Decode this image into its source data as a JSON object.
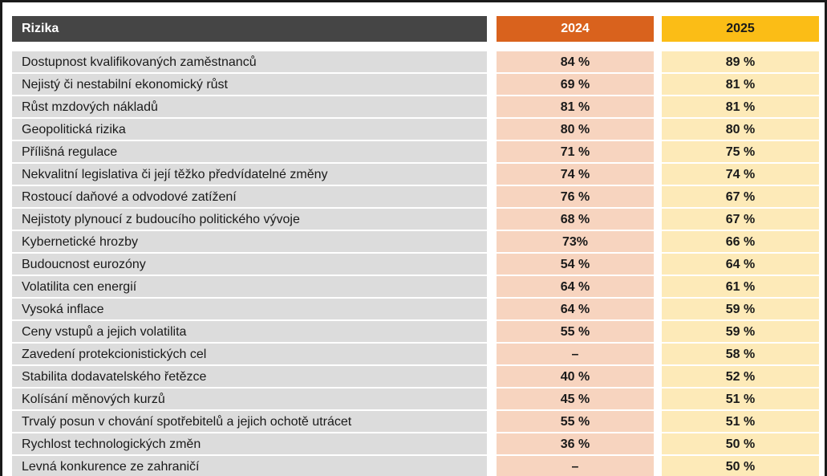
{
  "chart_data": {
    "type": "table",
    "columns": [
      "Rizika",
      "2024",
      "2025"
    ],
    "colors": {
      "header_label": "#454545",
      "header_2024": "#d9621d",
      "header_2025": "#fbbd16"
    },
    "rows": [
      {
        "label": "Dostupnost kvalifikovaných zaměstnanců",
        "y2024": "84 %",
        "y2025": "89 %"
      },
      {
        "label": "Nejistý či nestabilní ekonomický růst",
        "y2024": "69 %",
        "y2025": "81 %"
      },
      {
        "label": "Růst mzdových nákladů",
        "y2024": "81 %",
        "y2025": "81 %"
      },
      {
        "label": "Geopolitická rizika",
        "y2024": "80 %",
        "y2025": "80 %"
      },
      {
        "label": "Přílišná regulace",
        "y2024": "71 %",
        "y2025": "75 %"
      },
      {
        "label": "Nekvalitní legislativa či její těžko předvídatelné změny",
        "y2024": "74 %",
        "y2025": "74 %"
      },
      {
        "label": "Rostoucí daňové a odvodové zatížení",
        "y2024": "76 %",
        "y2025": "67 %"
      },
      {
        "label": "Nejistoty plynoucí z budoucího politického vývoje",
        "y2024": "68 %",
        "y2025": "67 %"
      },
      {
        "label": "Kybernetické hrozby",
        "y2024": "73%",
        "y2025": "66 %"
      },
      {
        "label": "Budoucnost eurozóny",
        "y2024": "54 %",
        "y2025": "64 %"
      },
      {
        "label": "Volatilita cen energií",
        "y2024": "64 %",
        "y2025": "61 %"
      },
      {
        "label": "Vysoká inflace",
        "y2024": "64 %",
        "y2025": "59 %"
      },
      {
        "label": "Ceny vstupů a jejich volatilita",
        "y2024": "55 %",
        "y2025": "59 %"
      },
      {
        "label": "Zavedení protekcionistických cel",
        "y2024": "–",
        "y2025": "58 %"
      },
      {
        "label": "Stabilita dodavatelského řetězce",
        "y2024": "40 %",
        "y2025": "52 %"
      },
      {
        "label": "Kolísání měnových kurzů",
        "y2024": "45 %",
        "y2025": "51 %"
      },
      {
        "label": "Trvalý posun v chování spotřebitelů a jejich ochotě utrácet",
        "y2024": "55 %",
        "y2025": "51 %"
      },
      {
        "label": "Rychlost technologických změn",
        "y2024": "36 %",
        "y2025": "50 %"
      },
      {
        "label": "Levná konkurence ze zahraničí",
        "y2024": "–",
        "y2025": "50 %"
      }
    ]
  }
}
